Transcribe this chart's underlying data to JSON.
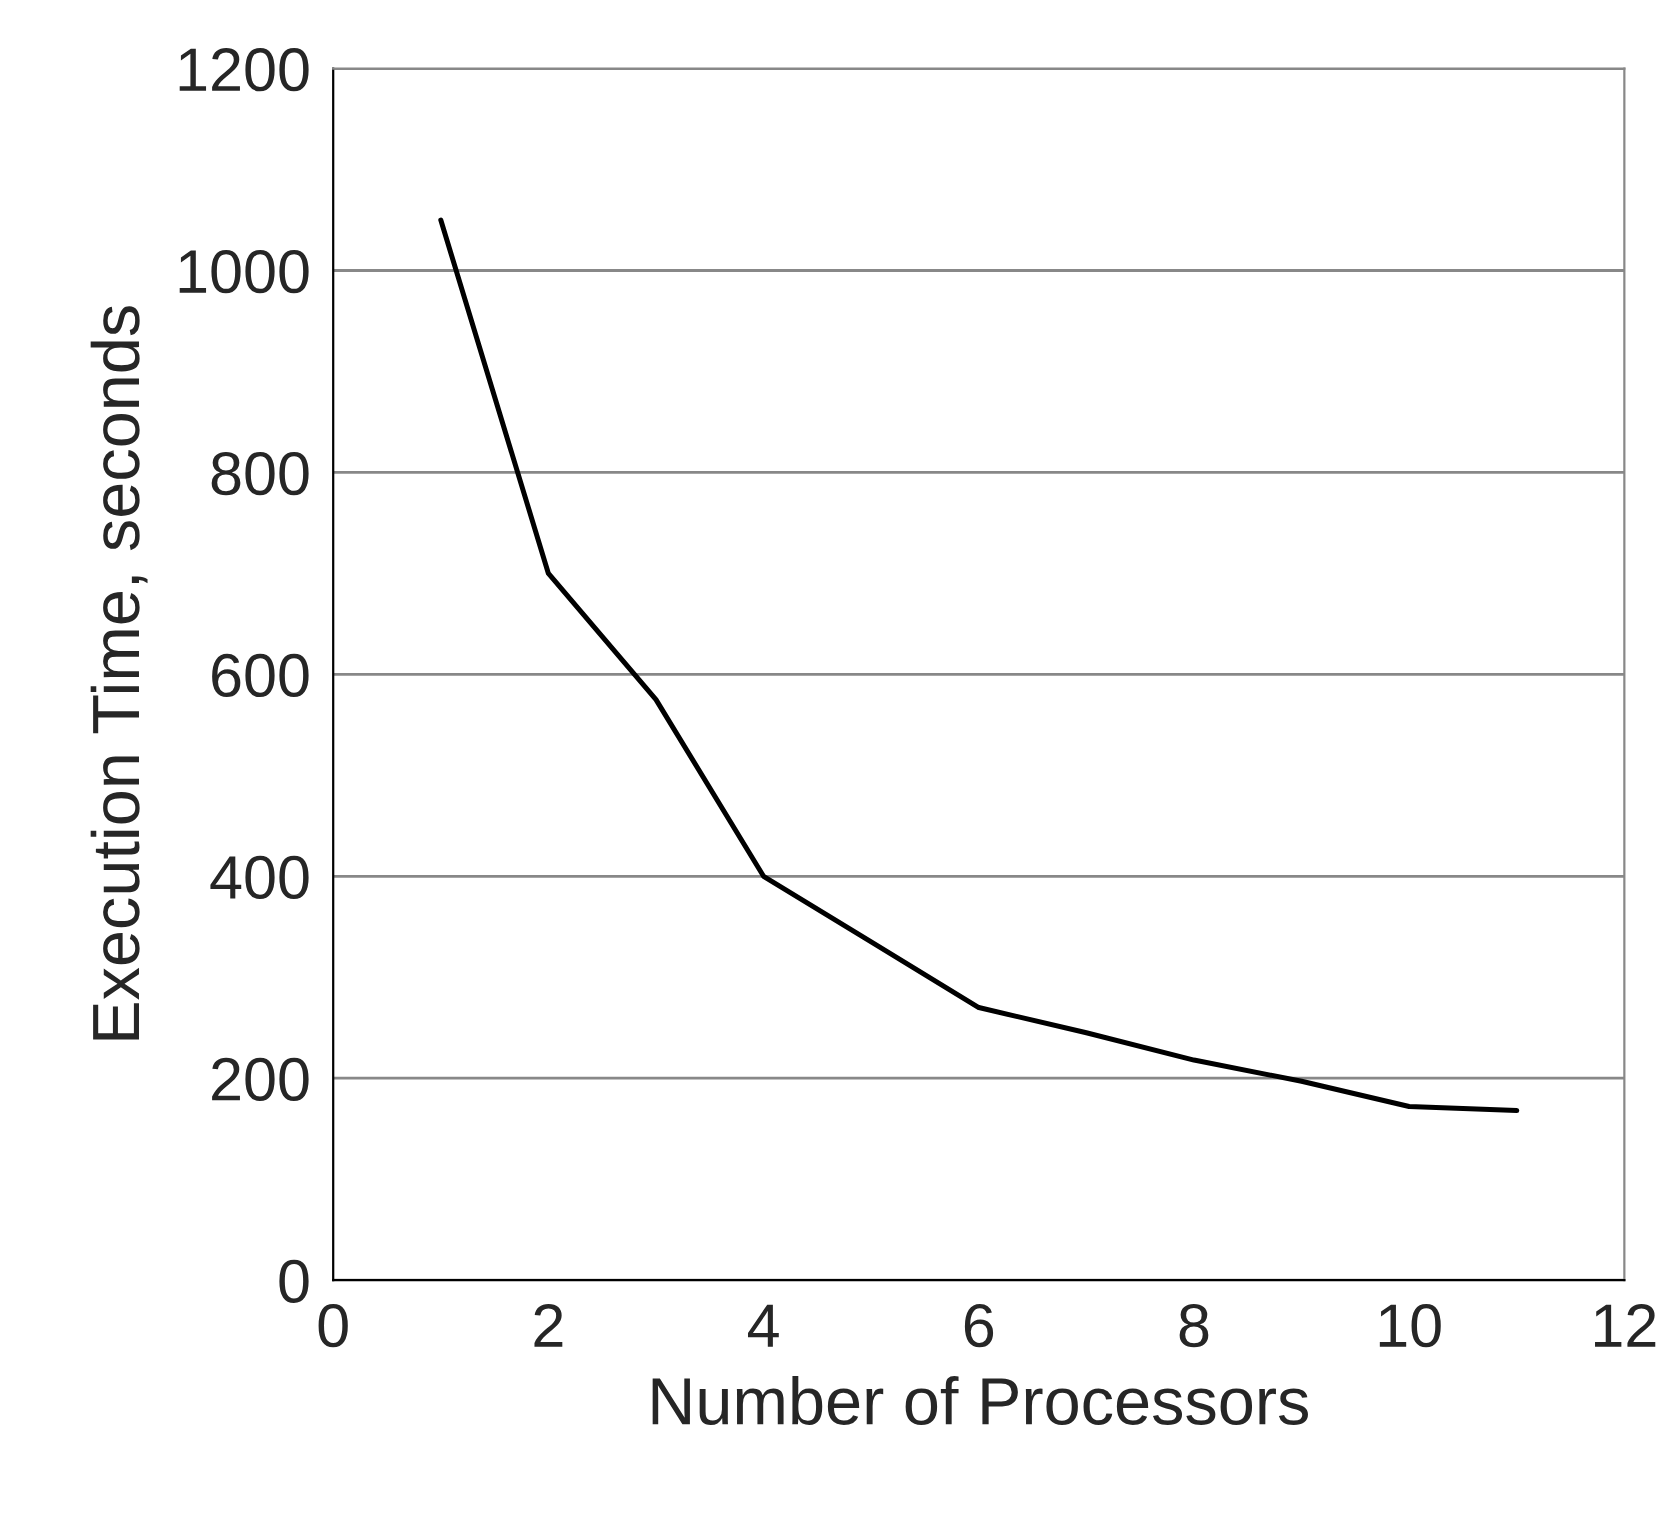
{
  "chart_data": {
    "type": "line",
    "xlabel": "Number of Processors",
    "ylabel": "Execution Time, seconds",
    "x": [
      1,
      2,
      3,
      4,
      5,
      6,
      7,
      8,
      9,
      10,
      11
    ],
    "series": [
      {
        "color": "#000000",
        "values": [
          1050,
          700,
          575,
          400,
          335,
          270,
          245,
          218,
          197,
          172,
          168
        ]
      }
    ],
    "xlim": [
      0,
      12
    ],
    "xticks": [
      0,
      2,
      4,
      6,
      8,
      10,
      12
    ],
    "ylim": [
      0,
      1200
    ],
    "yticks": [
      0,
      200,
      400,
      600,
      800,
      1000,
      1200
    ],
    "grid": "y",
    "marker": "none",
    "line_style": "solid"
  }
}
